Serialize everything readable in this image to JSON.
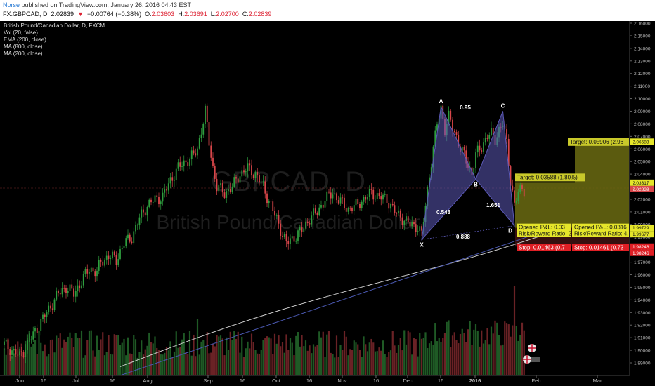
{
  "header": {
    "author": "Norse",
    "published": " published on TradingView.com, January 26, 2016 04:43 EST",
    "symbol": "FX:GBPCAD, D",
    "last": "2.02839",
    "change_arrow": "▼",
    "change": "−0.00764 (−0.38%)",
    "open_label": "O:",
    "open": "2.03603",
    "high_label": "H:",
    "high": "2.03691",
    "low_label": "L:",
    "low": "2.02700",
    "close_label": "C:",
    "close": "2.02839"
  },
  "indicators": {
    "title": "British Pound/Canadian Dollar, D, FXCM",
    "vol": "Vol (20, false)",
    "ema": "EMA (200, close)",
    "ma800": "MA (800, close)",
    "ma200": "MA (200, close)"
  },
  "watermark": {
    "symbol": "GBPCAD, D",
    "name": "British Pound/Canadian Dollar"
  },
  "pattern": {
    "points": [
      {
        "label": "X",
        "t": 0.0,
        "price": 1.988
      },
      {
        "label": "A",
        "t": 0.0,
        "price": 2.0935
      },
      {
        "label": "B",
        "t": 0.0,
        "price": 2.036
      },
      {
        "label": "C",
        "t": 0.0,
        "price": 2.09
      },
      {
        "label": "D",
        "t": 0.0,
        "price": 1.999
      }
    ],
    "ratios": [
      "0.95",
      "0.548",
      "1.651",
      "0.888"
    ]
  },
  "positions": {
    "target1": "Target: 0.03588 (1.80%)",
    "target2": "Target: 0.05906 (2.96",
    "opened1": "Opened P&L: 0.03",
    "rr1": "Risk/Reward Ratio: 2",
    "opened2": "Opened P&L: 0.0316",
    "rr2": "Risk/Reward Ratio: 4.",
    "stop1": "Stop: 0.01463 (0.7",
    "stop2": "Stop: 0.01461 (0.73"
  },
  "price_labels": {
    "t2": "2.06583",
    "t1": "2.03317",
    "current": "2.02839",
    "open1": "1.99729",
    "open2": "1.99677",
    "stop1": "1.98246",
    "stop2": "1.98246"
  },
  "colors": {
    "up": "#2e9e3e",
    "down": "#d9464a",
    "pattern": "#5c5ab8",
    "target": "#c9c92a",
    "stop": "#e01f25",
    "ma_white": "#cfcfcf",
    "ma_blue": "#4a58b0"
  },
  "chart_data": {
    "type": "candlestick",
    "symbol": "GBPCAD",
    "timeframe": "D",
    "ylim": [
      1.882,
      2.165
    ],
    "y_ticks": [
      "2.16000",
      "2.15000",
      "2.14000",
      "2.13000",
      "2.12000",
      "2.11000",
      "2.10000",
      "2.09000",
      "2.08000",
      "2.07000",
      "2.06000",
      "2.05000",
      "2.04000",
      "2.03000",
      "2.02000",
      "2.01000",
      "2.00000",
      "1.99000",
      "1.98000",
      "1.97000",
      "1.96000",
      "1.95000",
      "1.94000",
      "1.93000",
      "1.92000",
      "1.91000",
      "1.90000",
      "1.89000"
    ],
    "x_ticks": [
      "Jun",
      "16",
      "Jul",
      "16",
      "Aug",
      "Sep",
      "16",
      "Oct",
      "16",
      "Nov",
      "16",
      "Dec",
      "16",
      "2016",
      "Feb",
      "Mar"
    ],
    "price_path": [
      [
        0,
        1.905
      ],
      [
        4,
        1.9
      ],
      [
        8,
        1.895
      ],
      [
        12,
        1.905
      ],
      [
        16,
        1.915
      ],
      [
        20,
        1.925
      ],
      [
        24,
        1.935
      ],
      [
        28,
        1.945
      ],
      [
        32,
        1.95
      ],
      [
        36,
        1.945
      ],
      [
        40,
        1.955
      ],
      [
        44,
        1.965
      ],
      [
        48,
        1.962
      ],
      [
        50,
        1.97
      ],
      [
        54,
        1.975
      ],
      [
        58,
        1.972
      ],
      [
        62,
        1.985
      ],
      [
        66,
        1.99
      ],
      [
        70,
        2.005
      ],
      [
        74,
        2.015
      ],
      [
        78,
        2.02
      ],
      [
        82,
        2.022
      ],
      [
        86,
        2.035
      ],
      [
        90,
        2.045
      ],
      [
        94,
        2.05
      ],
      [
        98,
        2.055
      ],
      [
        100,
        2.06
      ],
      [
        102,
        2.075
      ],
      [
        104,
        2.09
      ],
      [
        106,
        2.065
      ],
      [
        108,
        2.045
      ],
      [
        110,
        2.03
      ],
      [
        114,
        2.025
      ],
      [
        118,
        2.03
      ],
      [
        122,
        2.04
      ],
      [
        126,
        2.045
      ],
      [
        130,
        2.04
      ],
      [
        134,
        2.03
      ],
      [
        138,
        2.015
      ],
      [
        142,
        2.0
      ],
      [
        146,
        1.985
      ],
      [
        150,
        1.99
      ],
      [
        154,
        1.995
      ],
      [
        158,
        2.005
      ],
      [
        162,
        2.01
      ],
      [
        166,
        2.02
      ],
      [
        170,
        2.025
      ],
      [
        174,
        2.018
      ],
      [
        178,
        2.012
      ],
      [
        182,
        2.015
      ],
      [
        186,
        2.02
      ],
      [
        190,
        2.025
      ],
      [
        194,
        2.022
      ],
      [
        198,
        2.02
      ],
      [
        202,
        2.01
      ],
      [
        206,
        2.005
      ],
      [
        210,
        2.0
      ],
      [
        214,
        1.998
      ],
      [
        216,
        1.992
      ],
      [
        218,
        2.015
      ],
      [
        220,
        2.04
      ],
      [
        222,
        2.06
      ],
      [
        224,
        2.08
      ],
      [
        226,
        2.093
      ],
      [
        228,
        2.075
      ],
      [
        230,
        2.085
      ],
      [
        232,
        2.078
      ],
      [
        234,
        2.07
      ],
      [
        236,
        2.06
      ],
      [
        238,
        2.055
      ],
      [
        240,
        2.048
      ],
      [
        242,
        2.04
      ],
      [
        244,
        2.055
      ],
      [
        246,
        2.06
      ],
      [
        248,
        2.065
      ],
      [
        250,
        2.07
      ],
      [
        252,
        2.072
      ],
      [
        254,
        2.068
      ],
      [
        256,
        2.075
      ],
      [
        258,
        2.08
      ],
      [
        260,
        2.065
      ],
      [
        262,
        2.035
      ],
      [
        264,
        2.015
      ],
      [
        266,
        2.025
      ],
      [
        268,
        2.03
      ],
      [
        269,
        2.028
      ]
    ],
    "volume_scale": "relative",
    "moving_averages": [
      "EMA (200, close)",
      "MA (800, close)",
      "MA (200, close)"
    ]
  }
}
